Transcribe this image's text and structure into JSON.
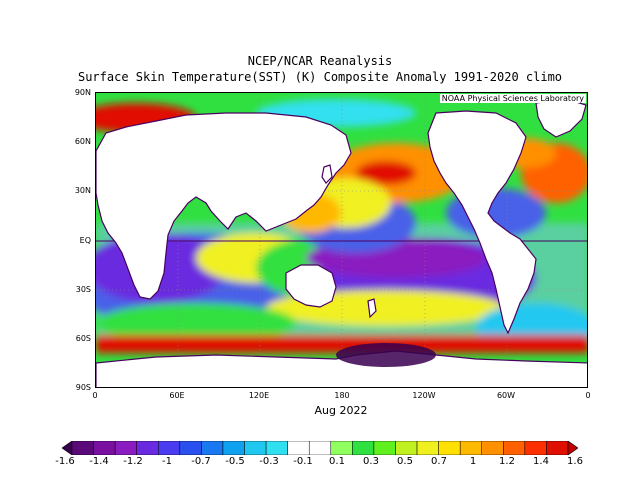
{
  "titles": {
    "line1": "NCEP/NCAR Reanalysis",
    "line2": "Surface Skin Temperature(SST) (K) Composite Anomaly 1991-2020 climo",
    "date": "Aug 2022",
    "credit": "NOAA Physical Sciences Laboratory"
  },
  "axes": {
    "lat_labels": [
      "90N",
      "60N",
      "30N",
      "EQ",
      "30S",
      "60S",
      "90S"
    ],
    "lon_labels": [
      "0",
      "60E",
      "120E",
      "180",
      "120W",
      "60W",
      "0"
    ]
  },
  "colorbar": {
    "labels": [
      "-1.6",
      "-1.4",
      "-1.2",
      "-1",
      "-0.7",
      "-0.5",
      "-0.3",
      "-0.1",
      "0.1",
      "0.3",
      "0.5",
      "0.7",
      "1",
      "1.2",
      "1.4",
      "1.6"
    ],
    "colors": [
      "#3a0050",
      "#5a0a78",
      "#7a10a0",
      "#8a1cc0",
      "#6a2ae0",
      "#4a3af0",
      "#2a50f0",
      "#1a78f0",
      "#10a0f0",
      "#20c8f0",
      "#30e0f0",
      "#ffffff",
      "#ffffff",
      "#90ff60",
      "#30e040",
      "#60f020",
      "#c0f020",
      "#f0f020",
      "#ffe000",
      "#ffb800",
      "#ff9000",
      "#ff6000",
      "#ff3000",
      "#e01000",
      "#c00000"
    ]
  },
  "colors": {
    "land": "#ffffff",
    "coast": "#4a0060",
    "grid": "#888888"
  }
}
